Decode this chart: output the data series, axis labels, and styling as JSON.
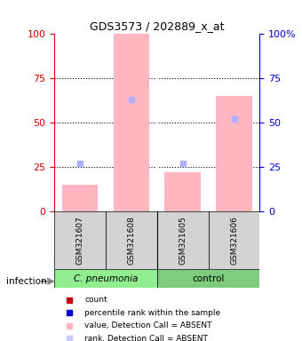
{
  "title": "GDS3573 / 202889_x_at",
  "samples": [
    "GSM321607",
    "GSM321608",
    "GSM321605",
    "GSM321606"
  ],
  "groups": [
    "C. pneumonia",
    "C. pneumonia",
    "control",
    "control"
  ],
  "group_labels": [
    "C. pneumonia",
    "control"
  ],
  "group_colors": [
    "#90ee90",
    "#90ee90"
  ],
  "bar_colors_absent": [
    "#ffb6c1",
    "#ffb6c1",
    "#ffb6c1",
    "#ffb6c1"
  ],
  "bar_values": [
    15,
    100,
    22,
    65
  ],
  "rank_squares_absent": [
    27,
    63,
    27,
    52
  ],
  "ylim_left": [
    0,
    100
  ],
  "ylim_right": [
    0,
    100
  ],
  "yticks_left": [
    0,
    25,
    50,
    75,
    100
  ],
  "yticks_right": [
    0,
    25,
    50,
    75,
    100
  ],
  "left_axis_color": "#cc0000",
  "right_axis_color": "#0000cc",
  "grid_color": "#000000",
  "sample_box_color": "#d3d3d3",
  "group_box_colors": [
    "#90ee90",
    "#7dcd7d"
  ],
  "infection_arrow_color": "#808080",
  "legend_items": [
    {
      "label": "count",
      "color": "#cc0000",
      "marker": "s"
    },
    {
      "label": "percentile rank within the sample",
      "color": "#0000cc",
      "marker": "s"
    },
    {
      "label": "value, Detection Call = ABSENT",
      "color": "#ffb6c1",
      "marker": "s"
    },
    {
      "label": "rank, Detection Call = ABSENT",
      "color": "#c8c8ff",
      "marker": "s"
    }
  ]
}
